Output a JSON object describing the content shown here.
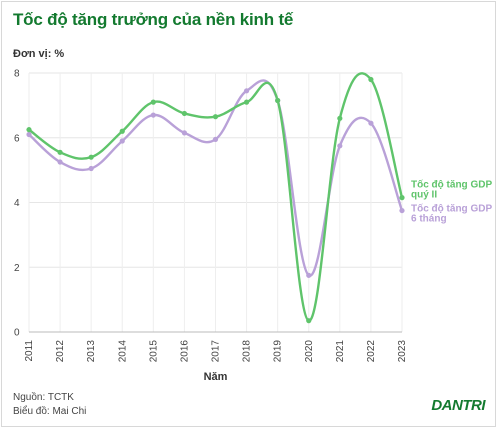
{
  "header": {
    "title": "Tốc độ tăng trưởng của nền kinh tế",
    "unit": "Đơn vị: %"
  },
  "footer": {
    "source": "Nguồn: TCTK",
    "author": "Biểu đồ: Mai Chi"
  },
  "logo": {
    "text": "DANTRI",
    "color": "#137a2f"
  },
  "colors": {
    "green": "#5fc46b",
    "purple": "#b9a1d8",
    "title": "#137a2f"
  },
  "chart_data": {
    "type": "line",
    "title": "Tốc độ tăng trưởng của nền kinh tế",
    "xlabel": "Năm",
    "ylabel": "",
    "ylim": [
      0,
      8
    ],
    "yticks": [
      0,
      2,
      4,
      6,
      8
    ],
    "grid": true,
    "x": [
      "2011",
      "2012",
      "2013",
      "2014",
      "2015",
      "2016",
      "2017",
      "2018",
      "2019",
      "2020",
      "2021",
      "2022",
      "2023"
    ],
    "series": [
      {
        "name": "Tốc độ tăng GDP quý II",
        "label_lines": [
          "Tốc độ tăng GDP",
          "quý II"
        ],
        "color": "#5fc46b",
        "values": [
          6.25,
          5.55,
          5.4,
          6.2,
          7.1,
          6.75,
          6.65,
          7.1,
          7.15,
          0.35,
          6.6,
          7.8,
          4.15
        ]
      },
      {
        "name": "Tốc độ tăng GDP 6 tháng",
        "label_lines": [
          "Tốc độ tăng GDP",
          "6 tháng"
        ],
        "color": "#b9a1d8",
        "values": [
          6.1,
          5.25,
          5.05,
          5.9,
          6.7,
          6.15,
          5.95,
          7.45,
          7.15,
          1.75,
          5.75,
          6.45,
          3.75
        ]
      }
    ]
  }
}
